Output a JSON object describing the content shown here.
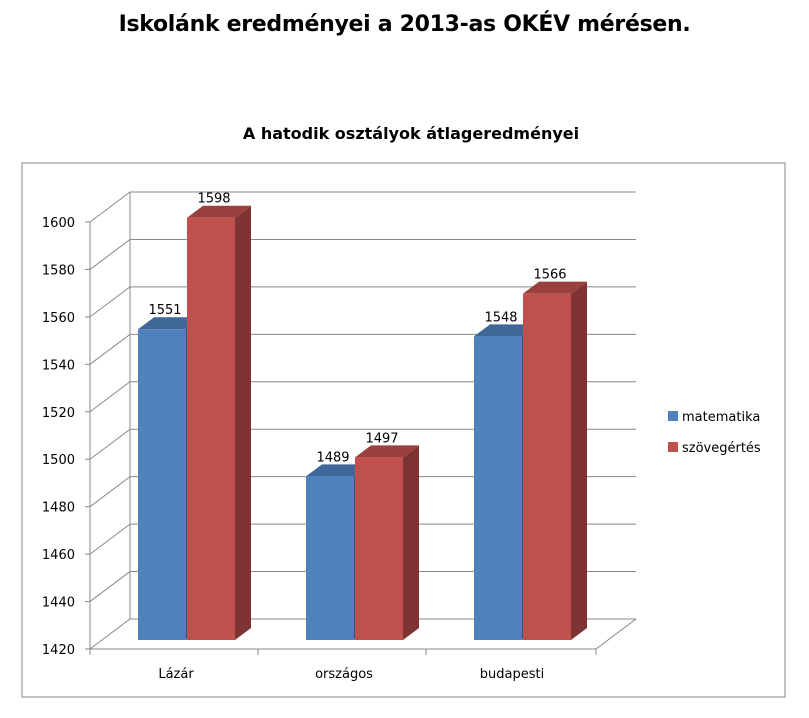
{
  "page_title": "Iskolánk eredményei a 2013-as OKÉV mérésen.",
  "chart_data": {
    "type": "bar",
    "title": "A hatodik osztályok átlageredményei",
    "categories": [
      "Lázár",
      "országos",
      "budapesti"
    ],
    "series": [
      {
        "name": "matematika",
        "values": [
          1551,
          1489,
          1548
        ],
        "color": "#4F81BD"
      },
      {
        "name": "szövegértés",
        "values": [
          1598,
          1497,
          1566
        ],
        "color": "#C0504D"
      }
    ],
    "ylim": [
      1420,
      1600
    ],
    "yticks": [
      1420,
      1440,
      1460,
      1480,
      1500,
      1520,
      1540,
      1560,
      1580,
      1600
    ],
    "grid": true,
    "legend": "right",
    "xlabel": "",
    "ylabel": ""
  }
}
